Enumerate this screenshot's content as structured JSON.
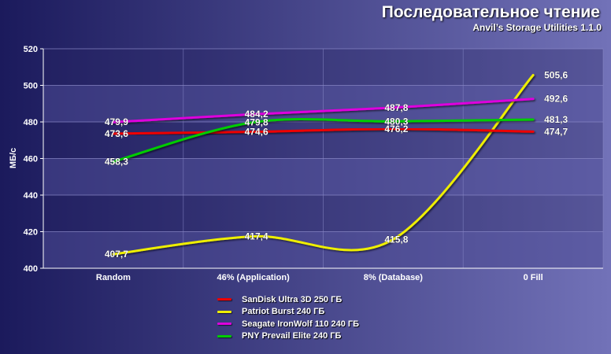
{
  "title": "Последовательное чтение",
  "subtitle": "Anvil’s Storage Utilities 1.1.0",
  "colors": {
    "background_left": "#1b1a5c",
    "background_right": "#7272b8",
    "plot_band_dark": "#262361",
    "plot_band_light": "#4d4b93"
  },
  "chart_data": {
    "type": "line",
    "title": "Последовательное чтение",
    "subtitle": "Anvil’s Storage Utilities 1.1.0",
    "xlabel": "",
    "ylabel": "МБ/с",
    "ylim": [
      400,
      520
    ],
    "yticks": [
      400,
      420,
      440,
      460,
      480,
      500,
      520
    ],
    "ytick_labels": [
      "400",
      "420",
      "440",
      "460",
      "480",
      "500",
      "520"
    ],
    "categories": [
      "Random",
      "46% (Application)",
      "8% (Database)",
      "0 Fill"
    ],
    "grid": true,
    "legend_position": "bottom",
    "series": [
      {
        "name": "SanDisk Ultra 3D 250 ГБ",
        "color": "#ee0000",
        "values": [
          473.6,
          474.6,
          476.2,
          474.7
        ],
        "labels": [
          "473,6",
          "474,6",
          "476,2",
          "474,7"
        ]
      },
      {
        "name": "Patriot Burst 240 ГБ",
        "color": "#eeee00",
        "values": [
          407.7,
          417.4,
          415.8,
          505.6
        ],
        "labels": [
          "407,7",
          "417,4",
          "415,8",
          "505,6"
        ]
      },
      {
        "name": "Seagate IronWolf 110 240 ГБ",
        "color": "#dd00dd",
        "values": [
          479.9,
          484.2,
          487.8,
          492.6
        ],
        "labels": [
          "479,9",
          "484,2",
          "487,8",
          "492,6"
        ]
      },
      {
        "name": "PNY Prevail Elite 240 ГБ",
        "color": "#00cc00",
        "values": [
          458.3,
          479.8,
          480.3,
          481.3
        ],
        "labels": [
          "458,3",
          "479,8",
          "480,3",
          "481,3"
        ]
      }
    ]
  }
}
